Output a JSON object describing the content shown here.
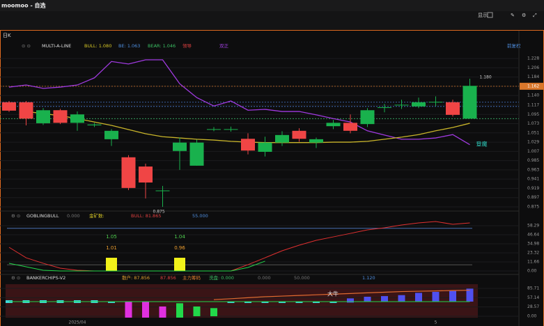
{
  "window": {
    "title": "moomoo - 自选",
    "display": "显示"
  },
  "main": {
    "period": "日K",
    "adjust": "前复权",
    "indicator": "MULTI-A-LINE",
    "legend": [
      {
        "text": "BULL: 1.080",
        "color": "#d8c826"
      },
      {
        "text": "BE: 1.063",
        "color": "#4f8fe0"
      },
      {
        "text": "BEAR: 1.046",
        "color": "#3cc064"
      },
      {
        "text": "领导",
        "color": "#e04040"
      },
      {
        "text": "双正",
        "color": "#a040e0"
      }
    ],
    "up_color": "#19b14d",
    "down_color": "#f04545",
    "ylim": [
      0.87,
      1.238
    ],
    "yticks": [
      1.228,
      1.206,
      1.184,
      1.162,
      {
        "value": 1.14,
        "label": "1.140"
      },
      1.117,
      1.095,
      1.073,
      1.051,
      1.029,
      1.007,
      0.985,
      0.963,
      0.941,
      0.919,
      0.897,
      0.875
    ],
    "levels": [
      {
        "value": 1.162,
        "color": "#d9772b",
        "tag": true
      },
      {
        "value": 1.124,
        "color": "#4a7bd0"
      },
      {
        "value": 1.114,
        "color": "#4a7bd0"
      },
      {
        "value": 1.085,
        "color": "#3bb36b"
      }
    ],
    "candles": [
      {
        "open": 1.124,
        "high": 1.127,
        "low": 1.101,
        "close": 1.104
      },
      {
        "open": 1.124,
        "high": 1.127,
        "low": 1.069,
        "close": 1.085
      },
      {
        "open": 1.074,
        "high": 1.11,
        "low": 1.07,
        "close": 1.105
      },
      {
        "open": 1.105,
        "high": 1.108,
        "low": 1.072,
        "close": 1.075
      },
      {
        "open": 1.075,
        "high": 1.102,
        "low": 1.056,
        "close": 1.095
      },
      {
        "open": 1.069,
        "high": 1.075,
        "low": 1.065,
        "close": 1.071
      },
      {
        "open": 1.036,
        "high": 1.06,
        "low": 1.02,
        "close": 1.056
      },
      {
        "open": 0.993,
        "high": 0.998,
        "low": 0.915,
        "close": 0.92
      },
      {
        "open": 0.971,
        "high": 0.978,
        "low": 0.895,
        "close": 0.933
      },
      {
        "open": 0.913,
        "high": 0.925,
        "low": 0.875,
        "close": 0.914
      },
      {
        "open": 1.008,
        "high": 1.04,
        "low": 0.963,
        "close": 1.028
      },
      {
        "open": 0.973,
        "high": 1.035,
        "low": 0.973,
        "close": 1.028
      },
      {
        "open": 1.059,
        "high": 1.065,
        "low": 1.055,
        "close": 1.06
      },
      {
        "open": 1.059,
        "high": 1.066,
        "low": 1.054,
        "close": 1.06
      },
      {
        "open": 1.037,
        "high": 1.05,
        "low": 1.0,
        "close": 1.009
      },
      {
        "open": 1.006,
        "high": 1.042,
        "low": 0.995,
        "close": 1.028
      },
      {
        "open": 1.028,
        "high": 1.055,
        "low": 1.02,
        "close": 1.046
      },
      {
        "open": 1.056,
        "high": 1.062,
        "low": 1.03,
        "close": 1.037
      },
      {
        "open": 1.028,
        "high": 1.04,
        "low": 1.015,
        "close": 1.036
      },
      {
        "open": 1.067,
        "high": 1.082,
        "low": 1.06,
        "close": 1.075
      },
      {
        "open": 1.075,
        "high": 1.095,
        "low": 1.05,
        "close": 1.056
      },
      {
        "open": 1.072,
        "high": 1.11,
        "low": 1.065,
        "close": 1.105
      },
      {
        "open": 1.111,
        "high": 1.12,
        "low": 1.1,
        "close": 1.112
      },
      {
        "open": 1.117,
        "high": 1.13,
        "low": 1.108,
        "close": 1.118
      },
      {
        "open": 1.114,
        "high": 1.135,
        "low": 1.11,
        "close": 1.124
      },
      {
        "open": 1.124,
        "high": 1.138,
        "low": 1.115,
        "close": 1.125
      },
      {
        "open": 1.124,
        "high": 1.13,
        "low": 1.09,
        "close": 1.094
      },
      {
        "open": 1.085,
        "high": 1.18,
        "low": 1.085,
        "close": 1.163
      }
    ],
    "lines": [
      {
        "color": "#a03ae0",
        "values": [
          1.16,
          1.165,
          1.157,
          1.16,
          1.165,
          1.182,
          1.221,
          1.215,
          1.225,
          1.225,
          1.168,
          1.135,
          1.115,
          1.127,
          1.105,
          1.107,
          1.102,
          1.102,
          1.094,
          1.085,
          1.077,
          1.056,
          1.046,
          1.036,
          1.036,
          1.039,
          1.047,
          1.023
        ]
      },
      {
        "color": "#c9b52a",
        "values": [
          null,
          1.102,
          1.097,
          1.092,
          1.085,
          1.077,
          1.069,
          1.059,
          1.049,
          1.042,
          1.039,
          1.036,
          1.034,
          1.031,
          1.029,
          1.028,
          1.028,
          1.028,
          1.028,
          1.029,
          1.029,
          1.031,
          1.036,
          1.041,
          1.047,
          1.056,
          1.064,
          1.074
        ]
      }
    ],
    "high_label": "1.180",
    "low_label": "0.875",
    "signal": "登魔"
  },
  "goblin": {
    "name": "GOBLINGBULL",
    "items": [
      {
        "text": "0.000",
        "color": "#777"
      },
      {
        "text": "金矿数:",
        "color": "#d8c826"
      },
      {
        "text": "BULL: 81.865",
        "color": "#e04040"
      },
      {
        "text": "55.000",
        "color": "#4f8fe0"
      }
    ],
    "ylim": [
      -4.5,
      65.5
    ],
    "yticks": [
      58.29,
      46.64,
      34.98,
      23.32,
      11.66,
      {
        "value": 0,
        "label": "0.00"
      }
    ],
    "levels": [
      {
        "value": 55,
        "color": "#4a6fb0"
      },
      {
        "value": 8,
        "color": "#555"
      }
    ],
    "red": [
      30.5,
      17.0,
      9.9,
      3.6,
      0.9,
      0,
      0,
      0,
      0,
      0,
      0,
      0,
      0,
      0,
      8.1,
      17.0,
      26.0,
      33.2,
      39.5,
      43.9,
      48.4,
      52.9,
      55.6,
      59.2,
      61.9,
      63.7,
      60.1,
      61.9
    ],
    "green": [
      9.9,
      5.4,
      0.9,
      0,
      0,
      0,
      0,
      0,
      0,
      0,
      0,
      0,
      0,
      0,
      4.5,
      12.6,
      null,
      null,
      null,
      null,
      null,
      null,
      null,
      null,
      null,
      null,
      null,
      null
    ],
    "bars": [
      {
        "index": 6,
        "value": 17.0,
        "labels": [
          "1.05",
          "1.01"
        ]
      },
      {
        "index": 10,
        "value": 17.0,
        "labels": [
          "1.04",
          "0.96"
        ]
      }
    ]
  },
  "banker": {
    "name": "BANKERCHIPS-V2",
    "items": [
      {
        "text": "散户: 87.856",
        "color": "#e0a030"
      },
      {
        "text": "87.856",
        "color": "#e04040"
      },
      {
        "text": "主力筹码",
        "color": "#e08030"
      },
      {
        "text": "洗盘: 0.000",
        "color": "#3cc064"
      },
      {
        "text": "0.000",
        "color": "#777"
      },
      {
        "text": "50.000",
        "color": "#777"
      },
      {
        "text": "1.120",
        "color": "#4f8fe0"
      }
    ],
    "ylim": [
      -12.9,
      102.9
    ],
    "yticks": [
      85.71,
      57.14,
      28.57,
      {
        "value": 0,
        "label": "0.00"
      }
    ],
    "bars": [
      {
        "lo": 40.7,
        "hi": 49.3,
        "color": "#3fd8d8"
      },
      {
        "lo": 40.7,
        "hi": 49.3,
        "color": "#3fd8d8"
      },
      {
        "lo": 40.7,
        "hi": 49.3,
        "color": "#3fd8d8"
      },
      {
        "lo": 40.7,
        "hi": 49.3,
        "color": "#3fd8d8"
      },
      {
        "lo": 40.7,
        "hi": 49.3,
        "color": "#3fd8d8"
      },
      {
        "lo": 40.7,
        "hi": 49.3,
        "color": "#3fd8d8"
      },
      {
        "lo": 40.7,
        "hi": 45.0,
        "color": "#3fd8d8"
      },
      {
        "lo": -4.3,
        "hi": 45.0,
        "color": "#e030e0"
      },
      {
        "lo": -4.3,
        "hi": 45.0,
        "color": "#e030e0"
      },
      {
        "lo": -4.3,
        "hi": 30.0,
        "color": "#e030e0"
      },
      {
        "lo": -4.3,
        "hi": 40.0,
        "color": "#22d84a"
      },
      {
        "lo": 0,
        "hi": 30.0,
        "color": "#22d84a"
      },
      {
        "lo": 0,
        "hi": 25.0,
        "color": "#22d84a"
      },
      {
        "lo": 40.7,
        "hi": 45.0,
        "color": "#3fd8d8"
      },
      {
        "lo": 40.7,
        "hi": 45.0,
        "color": "#3fd8d8"
      },
      {
        "lo": 40.7,
        "hi": 45.0,
        "color": "#3fd8d8"
      },
      {
        "lo": 40.7,
        "hi": 45.0,
        "color": "#3fd8d8"
      },
      {
        "lo": 40.7,
        "hi": 45.0,
        "color": "#3fd8d8"
      },
      {
        "lo": 40.7,
        "hi": 45.0,
        "color": "#3fd8d8"
      },
      {
        "lo": 40.7,
        "hi": 45.0,
        "color": "#3fd8d8"
      },
      {
        "lo": 42,
        "hi": 55,
        "color": "#5050f0"
      },
      {
        "lo": 45,
        "hi": 60,
        "color": "#5050f0"
      },
      {
        "lo": 45,
        "hi": 62,
        "color": "#5050f0"
      },
      {
        "lo": 45,
        "hi": 65,
        "color": "#5050f0"
      },
      {
        "lo": 45,
        "hi": 72,
        "color": "#5050f0"
      },
      {
        "lo": 45,
        "hi": 75,
        "color": "#5050f0"
      },
      {
        "lo": 45,
        "hi": 78,
        "color": "#5050f0"
      },
      {
        "lo": 45,
        "hi": 85,
        "color": "#5050f0"
      }
    ],
    "orange": [
      null,
      null,
      null,
      null,
      null,
      null,
      null,
      null,
      null,
      null,
      null,
      null,
      51,
      54,
      57,
      60,
      62,
      64,
      66,
      68,
      70,
      72,
      74,
      76,
      77,
      78,
      79,
      80
    ],
    "green": [
      45,
      45,
      45,
      45,
      45,
      45,
      45,
      45,
      45,
      45,
      45,
      45,
      45,
      45,
      45,
      45,
      45,
      45,
      45,
      45,
      45,
      45,
      45,
      45,
      45,
      45,
      45,
      45
    ],
    "label": "大牛"
  },
  "dates": [
    {
      "index": 4,
      "label": "2025/04"
    },
    {
      "index": 25,
      "label": "5"
    }
  ]
}
